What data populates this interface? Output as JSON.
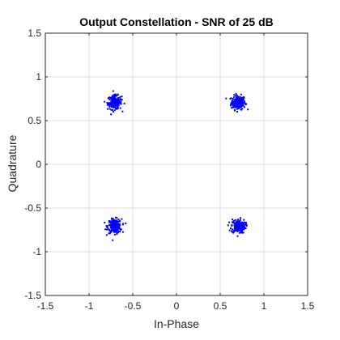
{
  "chart_data": {
    "type": "scatter",
    "title": "Output Constellation - SNR of 25 dB",
    "xlabel": "In-Phase",
    "ylabel": "Quadrature",
    "xlim": [
      -1.5,
      1.5
    ],
    "ylim": [
      -1.5,
      1.5
    ],
    "xticks": [
      -1.5,
      -1,
      -0.5,
      0,
      0.5,
      1,
      1.5
    ],
    "yticks": [
      -1.5,
      -1,
      -0.5,
      0,
      0.5,
      1,
      1.5
    ],
    "xtick_labels": [
      "-1.5",
      "-1",
      "-0.5",
      "0",
      "0.5",
      "1",
      "1.5"
    ],
    "ytick_labels": [
      "-1.5",
      "-1",
      "-0.5",
      "0",
      "0.5",
      "1",
      "1.5"
    ],
    "grid": true,
    "marker_color": "#0000ff",
    "axis_color": "#262626",
    "grid_color": "#dfdfdf",
    "constellation_centers": [
      {
        "x": 0.707,
        "y": 0.707
      },
      {
        "x": -0.707,
        "y": 0.707
      },
      {
        "x": -0.707,
        "y": -0.707
      },
      {
        "x": 0.707,
        "y": -0.707
      }
    ],
    "points_per_cluster": 200,
    "noise_std": 0.04
  }
}
